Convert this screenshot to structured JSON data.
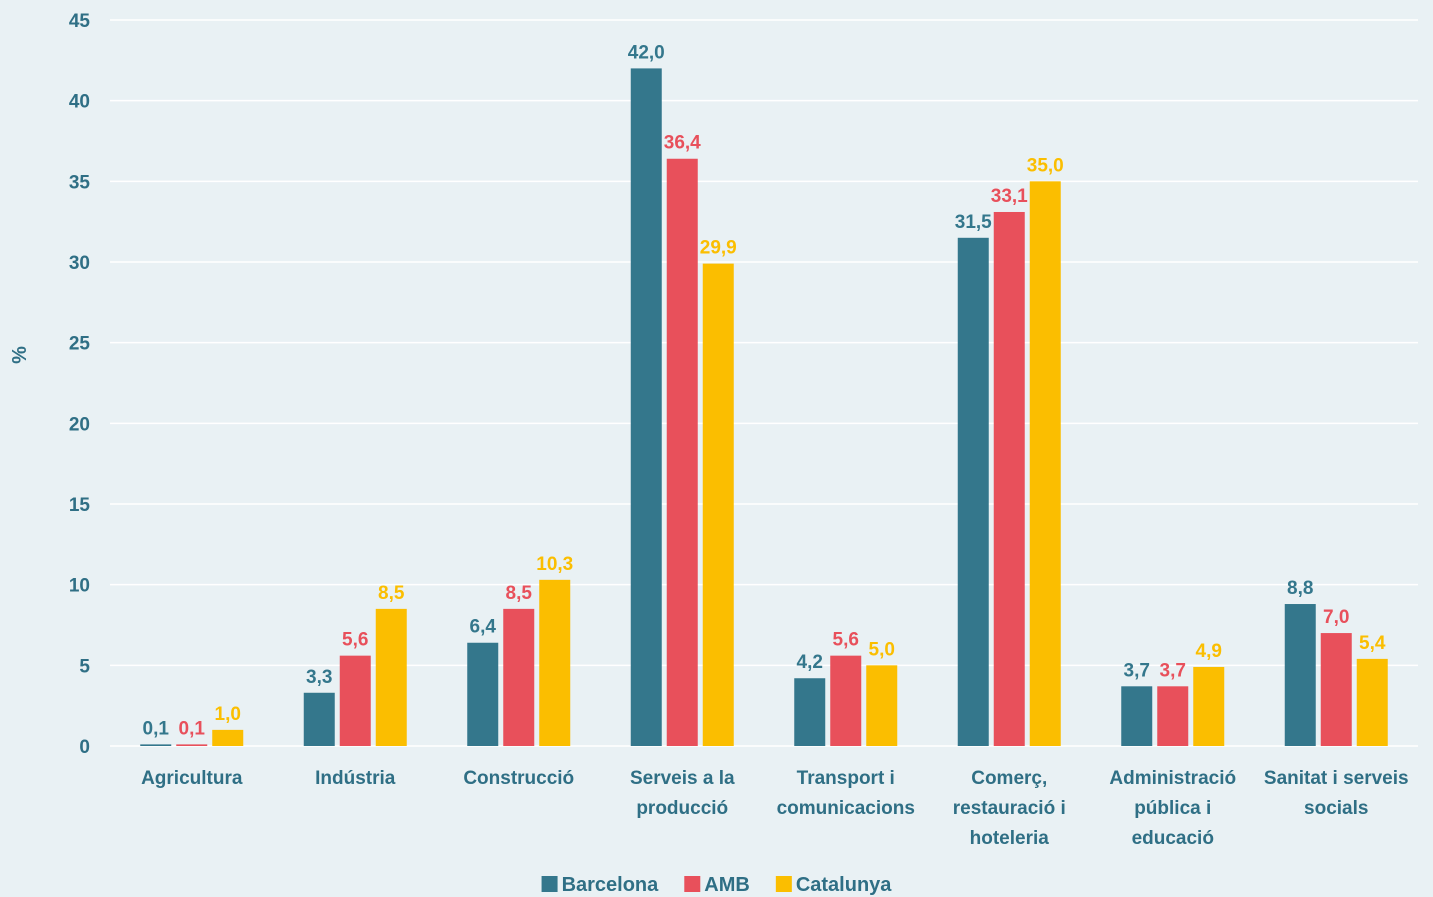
{
  "chart_data": {
    "type": "bar",
    "xlabel": "",
    "ylabel": "%",
    "ylim": [
      0,
      45
    ],
    "yticks": [
      0,
      5,
      10,
      15,
      20,
      25,
      30,
      35,
      40,
      45
    ],
    "grid": true,
    "legend_position": "bottom-center",
    "categories": [
      "Agricultura",
      "Indústria",
      "Construcció",
      "Serveis a la producció",
      "Transport i comunicacions",
      "Comerç, restauració i hoteleria",
      "Administració pública i educació",
      "Sanitat i serveis socials"
    ],
    "category_lines": [
      [
        "Agricultura"
      ],
      [
        "Indústria"
      ],
      [
        "Construcció"
      ],
      [
        "Serveis a la",
        "producció"
      ],
      [
        "Transport i",
        "comunicacions"
      ],
      [
        "Comerç,",
        "restauració i",
        "hoteleria"
      ],
      [
        "Administració",
        "pública i",
        "educació"
      ],
      [
        "Sanitat i serveis",
        "socials"
      ]
    ],
    "series": [
      {
        "name": "Barcelona",
        "color": "#34778c",
        "values": [
          0.1,
          3.3,
          6.4,
          42.0,
          4.2,
          31.5,
          3.7,
          8.8
        ],
        "labels": [
          "0,1",
          "3,3",
          "6,4",
          "42,0",
          "4,2",
          "31,5",
          "3,7",
          "8,8"
        ]
      },
      {
        "name": "AMB",
        "color": "#e8505b",
        "values": [
          0.1,
          5.6,
          8.5,
          36.4,
          5.6,
          33.1,
          3.7,
          7.0
        ],
        "labels": [
          "0,1",
          "5,6",
          "8,5",
          "36,4",
          "5,6",
          "33,1",
          "3,7",
          "7,0"
        ]
      },
      {
        "name": "Catalunya",
        "color": "#fbbe00",
        "values": [
          1.0,
          8.5,
          10.3,
          29.9,
          5.0,
          35.0,
          4.9,
          5.4
        ],
        "labels": [
          "1,0",
          "8,5",
          "10,3",
          "29,9",
          "5,0",
          "35,0",
          "4,9",
          "5,4"
        ]
      }
    ]
  }
}
